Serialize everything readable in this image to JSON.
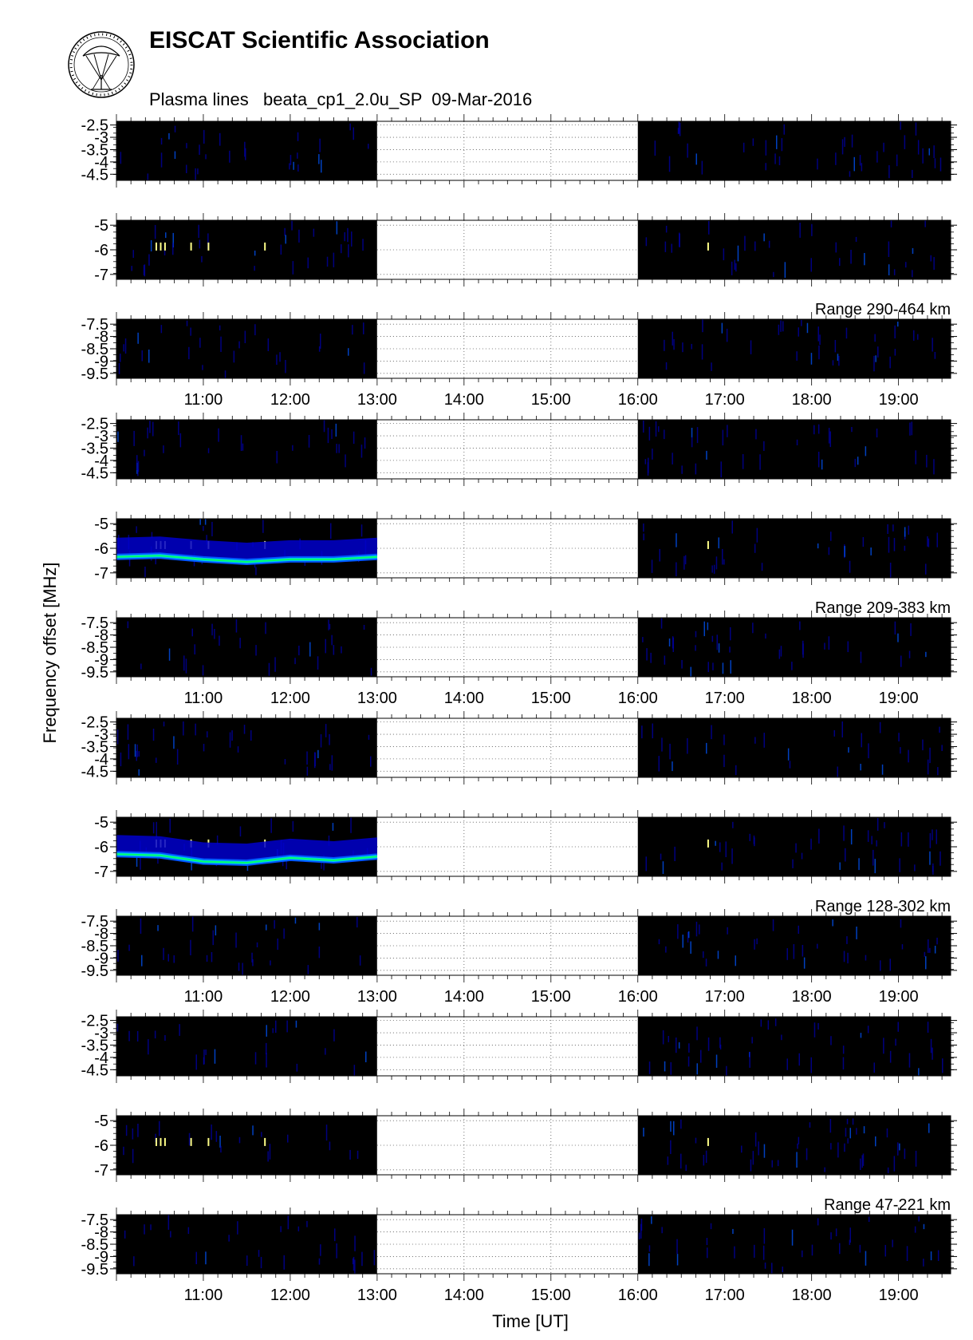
{
  "header": {
    "title": "EISCAT Scientific Association",
    "subtitle": "Plasma lines   beata_cp1_2.0u_SP  09-Mar-2016"
  },
  "chart_data": {
    "type": "heatmap",
    "ylabel": "Frequency offset [MHz]",
    "xlabel": "Time [UT]",
    "x_range_hours": [
      10.0,
      19.6
    ],
    "x_ticks": [
      "11:00",
      "12:00",
      "13:00",
      "14:00",
      "15:00",
      "16:00",
      "17:00",
      "18:00",
      "19:00"
    ],
    "no_data_interval": [
      "13:00",
      "16:00"
    ],
    "grid": "dotted (in no-data region)",
    "colormap": [
      "#000000",
      "#0000aa",
      "#0055ff",
      "#00c8ff",
      "#00ff66",
      "#ffff00"
    ],
    "background_color": "#000000",
    "no_data_color": "#ffffff",
    "groups": [
      {
        "range_label": "Range 290-464 km",
        "panels": [
          {
            "ylim": [
              -4.75,
              -2.35
            ],
            "y_tick_labels": [
              "-2.5",
              "-3",
              "-3.5",
              "-4",
              "-4.5"
            ],
            "plasma_line": null
          },
          {
            "ylim": [
              -7.2,
              -4.8
            ],
            "y_tick_labels": [
              "-5",
              "-6",
              "-7"
            ],
            "plasma_line": null
          },
          {
            "ylim": [
              -9.7,
              -7.3
            ],
            "y_tick_labels": [
              "-7.5",
              "-8",
              "-8.5",
              "-9",
              "-9.5"
            ],
            "plasma_line": null
          }
        ]
      },
      {
        "range_label": "Range 209-383 km",
        "panels": [
          {
            "ylim": [
              -4.75,
              -2.35
            ],
            "y_tick_labels": [
              "-2.5",
              "-3",
              "-3.5",
              "-4",
              "-4.5"
            ],
            "plasma_line": null
          },
          {
            "ylim": [
              -7.2,
              -4.8
            ],
            "y_tick_labels": [
              "-5",
              "-6",
              "-7"
            ],
            "plasma_line": {
              "t": [
                10.0,
                10.5,
                11.0,
                11.5,
                12.0,
                12.5,
                13.0
              ],
              "f": [
                -6.35,
                -6.3,
                -6.45,
                -6.55,
                -6.45,
                -6.45,
                -6.35
              ]
            }
          },
          {
            "ylim": [
              -9.7,
              -7.3
            ],
            "y_tick_labels": [
              "-7.5",
              "-8",
              "-8.5",
              "-9",
              "-9.5"
            ],
            "plasma_line": null
          }
        ]
      },
      {
        "range_label": "Range 128-302 km",
        "panels": [
          {
            "ylim": [
              -4.75,
              -2.35
            ],
            "y_tick_labels": [
              "-2.5",
              "-3",
              "-3.5",
              "-4",
              "-4.5"
            ],
            "plasma_line": null
          },
          {
            "ylim": [
              -7.2,
              -4.8
            ],
            "y_tick_labels": [
              "-5",
              "-6",
              "-7"
            ],
            "plasma_line": {
              "t": [
                10.0,
                10.5,
                11.0,
                11.5,
                12.0,
                12.5,
                13.0
              ],
              "f": [
                -6.3,
                -6.35,
                -6.6,
                -6.65,
                -6.45,
                -6.55,
                -6.4
              ]
            }
          },
          {
            "ylim": [
              -9.7,
              -7.3
            ],
            "y_tick_labels": [
              "-7.5",
              "-8",
              "-8.5",
              "-9",
              "-9.5"
            ],
            "plasma_line": null
          }
        ]
      },
      {
        "range_label": "Range 47-221 km",
        "panels": [
          {
            "ylim": [
              -4.75,
              -2.35
            ],
            "y_tick_labels": [
              "-2.5",
              "-3",
              "-3.5",
              "-4",
              "-4.5"
            ],
            "plasma_line": null
          },
          {
            "ylim": [
              -7.2,
              -4.8
            ],
            "y_tick_labels": [
              "-5",
              "-6",
              "-7"
            ],
            "plasma_line": null
          },
          {
            "ylim": [
              -9.7,
              -7.3
            ],
            "y_tick_labels": [
              "-7.5",
              "-8",
              "-8.5",
              "-9",
              "-9.5"
            ],
            "plasma_line": null
          }
        ]
      }
    ]
  }
}
